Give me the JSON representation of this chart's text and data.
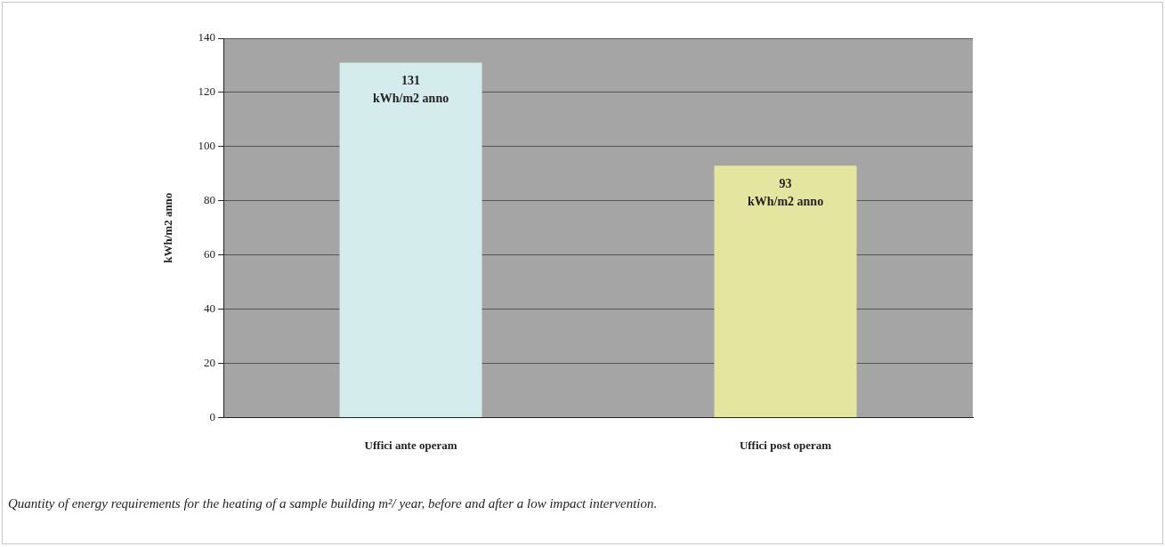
{
  "chart_data": {
    "type": "bar",
    "ylabel": "kWh/m2 anno",
    "categories": [
      "Uffici ante operam",
      "Uffici post operam"
    ],
    "values": [
      131,
      93
    ],
    "colors": [
      "#d4ecec",
      "#e4e6a0"
    ],
    "value_labels": [
      "131\nkWh/m2 anno",
      "93\nkWh/m2 anno"
    ],
    "ylim": [
      0,
      140
    ],
    "yticks": [
      0,
      20,
      40,
      60,
      80,
      100,
      120,
      140
    ],
    "grid": "y",
    "legend": false,
    "annotations": [
      "Quantity of energy requirements for the heating of a sample building m²/ year, before and after a low impact intervention."
    ]
  }
}
